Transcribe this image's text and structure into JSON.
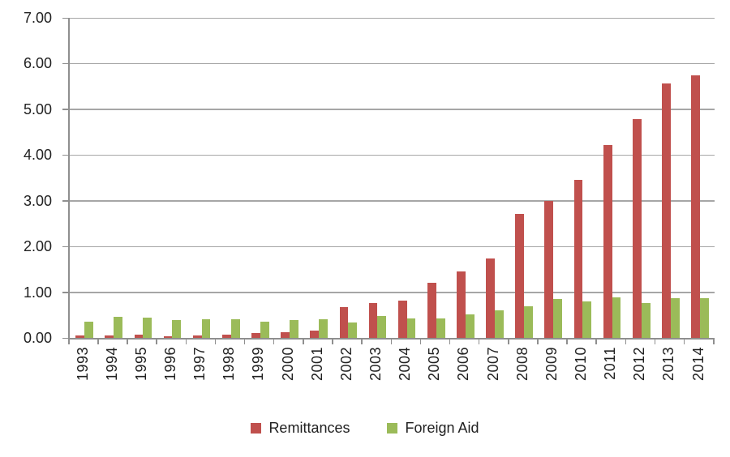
{
  "chart_data": {
    "type": "bar",
    "title": "",
    "xlabel": "",
    "ylabel": "",
    "categories": [
      "1993",
      "1994",
      "1995",
      "1996",
      "1997",
      "1998",
      "1999",
      "2000",
      "2001",
      "2002",
      "2003",
      "2004",
      "2005",
      "2006",
      "2007",
      "2008",
      "2009",
      "2010",
      "2011",
      "2012",
      "2013",
      "2014"
    ],
    "series": [
      {
        "name": "Remittances",
        "color": "#C0504D",
        "values": [
          0.05,
          0.05,
          0.08,
          0.04,
          0.05,
          0.07,
          0.1,
          0.13,
          0.16,
          0.68,
          0.77,
          0.82,
          1.21,
          1.45,
          1.73,
          2.71,
          3.0,
          3.45,
          4.22,
          4.79,
          5.57,
          5.75
        ]
      },
      {
        "name": "Foreign Aid",
        "color": "#9BBB59",
        "values": [
          0.36,
          0.46,
          0.44,
          0.39,
          0.4,
          0.41,
          0.35,
          0.39,
          0.4,
          0.34,
          0.47,
          0.43,
          0.43,
          0.52,
          0.6,
          0.69,
          0.85,
          0.8,
          0.88,
          0.76,
          0.87,
          0.87
        ]
      }
    ],
    "ylim": [
      0,
      7
    ],
    "yticks": [
      "0.00",
      "1.00",
      "2.00",
      "3.00",
      "4.00",
      "5.00",
      "6.00",
      "7.00"
    ],
    "grid": true,
    "legend_position": "bottom"
  },
  "colors": {
    "background": "#FFFFFF",
    "gridline": "#A6A6A6",
    "axis": "#8F8F8F",
    "text": "#212121"
  }
}
